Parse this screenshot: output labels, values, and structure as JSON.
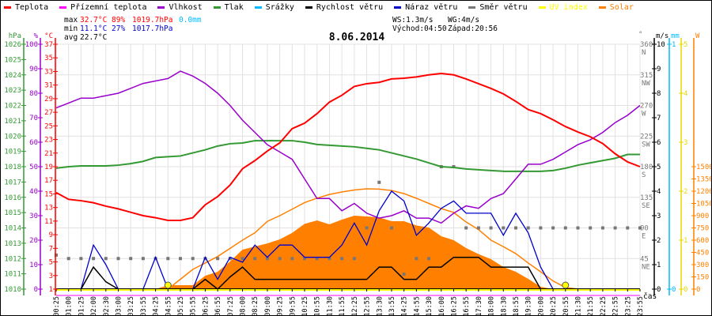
{
  "legend": [
    {
      "label": "Teplota",
      "color": "#ff0000"
    },
    {
      "label": "Přízemní teplota",
      "color": "#ff00ff"
    },
    {
      "label": "Vlhkost",
      "color": "#9900cc"
    },
    {
      "label": "Tlak",
      "color": "#339933"
    },
    {
      "label": "Srážky",
      "color": "#00bbff"
    },
    {
      "label": "Rychlost větru",
      "color": "#000000"
    },
    {
      "label": "Náraz větru",
      "color": "#0000cc"
    },
    {
      "label": "Směr větru",
      "color": "#777777"
    },
    {
      "label": "UV index",
      "color": "#ffff00"
    },
    {
      "label": "Solar",
      "color": "#ff8000"
    }
  ],
  "stats": {
    "max_label": "max",
    "max_temp": "32.7°C",
    "max_hum": "89%",
    "max_press": "1019.7hPa",
    "rain": "0.0mm",
    "min_label": "min",
    "min_temp": "11.1°C",
    "min_hum": "27%",
    "min_press": "1017.7hPa",
    "avg_label": "avg",
    "avg_temp": "22.7°C",
    "ws": "WS:1.3m/s",
    "wg": "WG:4m/s",
    "sunrise": "Východ:04:50",
    "sunset": "Západ:20:56"
  },
  "chart_data": {
    "type": "line",
    "title": "8.06.2014",
    "xlabel": "čas",
    "x": [
      "00:25",
      "01:00",
      "01:25",
      "02:00",
      "02:30",
      "03:00",
      "03:25",
      "03:55",
      "04:25",
      "04:55",
      "05:25",
      "05:55",
      "06:25",
      "06:55",
      "07:25",
      "08:00",
      "08:25",
      "09:00",
      "09:25",
      "09:55",
      "10:25",
      "10:55",
      "11:30",
      "11:55",
      "12:25",
      "12:55",
      "13:30",
      "13:55",
      "14:25",
      "14:55",
      "15:30",
      "16:00",
      "16:25",
      "16:55",
      "17:30",
      "18:00",
      "18:30",
      "18:55",
      "19:30",
      "20:00",
      "20:25",
      "20:55",
      "21:30",
      "21:55",
      "22:25",
      "22:55",
      "23:25",
      "23:55"
    ],
    "axes": {
      "pressure": {
        "unit": "hPa",
        "range": [
          1010,
          1026
        ],
        "ticks": [
          1026,
          1025,
          1024,
          1023,
          1022,
          1021,
          1020,
          1019,
          1018,
          1017,
          1016,
          1015,
          1014,
          1013,
          1012,
          1011,
          1010
        ]
      },
      "humidity": {
        "unit": "%",
        "range": [
          0,
          100
        ],
        "ticks": [
          100,
          90,
          80,
          70,
          60,
          50,
          40,
          30,
          20,
          10,
          0
        ]
      },
      "temperature": {
        "unit": "°C",
        "range": [
          1,
          37
        ],
        "ticks": [
          37,
          35,
          33,
          31,
          29,
          27,
          25,
          23,
          21,
          19,
          17,
          15,
          13,
          11,
          9,
          7,
          5,
          3,
          1
        ]
      },
      "direction": {
        "unit": "°",
        "range": [
          0,
          360
        ],
        "ticks": [
          {
            "v": 360,
            "l": "N"
          },
          {
            "v": 315,
            "l": "NW"
          },
          {
            "v": 270,
            "l": "W"
          },
          {
            "v": 225,
            "l": "SW"
          },
          {
            "v": 180,
            "l": "S"
          },
          {
            "v": 135,
            "l": "SE"
          },
          {
            "v": 90,
            "l": "E"
          },
          {
            "v": 45,
            "l": "NE"
          }
        ]
      },
      "wind": {
        "unit": "m/s",
        "range": [
          0,
          10
        ],
        "ticks": [
          10,
          9,
          8,
          7,
          6,
          5,
          4,
          3,
          2,
          1,
          0
        ]
      },
      "rain": {
        "unit": "mm",
        "range": [
          0,
          1
        ],
        "ticks": [
          1,
          0
        ]
      },
      "uv": {
        "unit": "",
        "range": [
          0,
          5
        ],
        "ticks": [
          5,
          4,
          3,
          2,
          1,
          0
        ]
      },
      "solar": {
        "unit": "W",
        "range": [
          0,
          3000
        ],
        "ticks": [
          1500,
          1350,
          1200,
          1050,
          900,
          750,
          600,
          450,
          300,
          150,
          0
        ]
      }
    },
    "series": {
      "temperature": {
        "name": "Teplota",
        "axis": "temperature",
        "color": "#ff0000",
        "values": [
          15.2,
          14.2,
          14.0,
          13.7,
          13.2,
          12.8,
          12.3,
          11.8,
          11.5,
          11.1,
          11.1,
          11.5,
          13.4,
          14.6,
          16.3,
          18.7,
          19.9,
          21.3,
          22.5,
          24.6,
          25.4,
          26.8,
          28.5,
          29.5,
          30.8,
          31.2,
          31.4,
          31.9,
          32.0,
          32.2,
          32.5,
          32.7,
          32.5,
          31.9,
          31.2,
          30.5,
          29.7,
          28.6,
          27.4,
          26.8,
          25.9,
          24.9,
          24.1,
          23.4,
          22.4,
          20.9,
          19.7,
          19.0
        ]
      },
      "humidity": {
        "name": "Vlhkost",
        "axis": "humidity",
        "color": "#9900cc",
        "values": [
          74,
          76,
          78,
          78,
          79,
          80,
          82,
          84,
          85,
          86,
          89,
          87,
          84,
          80,
          75,
          69,
          64,
          59,
          56,
          53,
          45,
          37,
          37,
          32,
          35,
          31,
          29,
          30,
          32,
          29,
          29,
          27,
          31,
          34,
          33,
          37,
          39,
          45,
          51,
          51,
          53,
          56,
          59,
          61,
          64,
          68,
          71,
          75
        ]
      },
      "pressure": {
        "name": "Tlak",
        "axis": "pressure",
        "color": "#339933",
        "values": [
          1017.9,
          1018.0,
          1018.05,
          1018.05,
          1018.05,
          1018.1,
          1018.2,
          1018.35,
          1018.6,
          1018.65,
          1018.7,
          1018.9,
          1019.1,
          1019.35,
          1019.5,
          1019.55,
          1019.7,
          1019.7,
          1019.7,
          1019.7,
          1019.6,
          1019.45,
          1019.4,
          1019.35,
          1019.3,
          1019.2,
          1019.1,
          1018.9,
          1018.7,
          1018.5,
          1018.25,
          1018.0,
          1017.95,
          1017.85,
          1017.8,
          1017.75,
          1017.7,
          1017.7,
          1017.7,
          1017.7,
          1017.75,
          1017.9,
          1018.1,
          1018.25,
          1018.4,
          1018.55,
          1018.8,
          1018.8
        ]
      },
      "rain": {
        "name": "Srážky",
        "axis": "rain",
        "color": "#00bbff",
        "values": [
          0,
          0,
          0,
          0,
          0,
          0,
          0,
          0,
          0,
          0,
          0,
          0,
          0,
          0,
          0,
          0,
          0,
          0,
          0,
          0,
          0,
          0,
          0,
          0,
          0,
          0,
          0,
          0,
          0,
          0,
          0,
          0,
          0,
          0,
          0,
          0,
          0,
          0,
          0,
          0,
          0,
          0,
          0,
          0,
          0,
          0,
          0,
          0
        ]
      },
      "wind_speed": {
        "name": "Rychlost větru",
        "axis": "wind",
        "color": "#000000",
        "values": [
          0,
          0,
          0,
          0.9,
          0.3,
          0,
          0,
          0,
          0,
          0,
          0,
          0,
          0.4,
          0,
          0.5,
          0.9,
          0.4,
          0.4,
          0.4,
          0.4,
          0.4,
          0.4,
          0.4,
          0.4,
          0.4,
          0.4,
          0.9,
          0.9,
          0.4,
          0.4,
          0.9,
          0.9,
          1.3,
          1.3,
          1.3,
          0.9,
          0.9,
          0.9,
          0.9,
          0,
          0,
          0,
          0,
          0,
          0,
          0,
          0,
          0
        ]
      },
      "wind_gust": {
        "name": "Náraz větru",
        "axis": "wind",
        "color": "#0000cc",
        "values": [
          0,
          0,
          0,
          1.8,
          1.0,
          0,
          0,
          0,
          1.3,
          0,
          0,
          0,
          1.3,
          0.4,
          1.3,
          1.1,
          1.8,
          1.3,
          1.8,
          1.8,
          1.3,
          1.3,
          1.3,
          1.8,
          2.7,
          1.8,
          3.2,
          4.0,
          3.6,
          2.2,
          2.7,
          3.3,
          3.6,
          3.1,
          3.1,
          3.1,
          2.2,
          3.1,
          2.3,
          0.9,
          0,
          0,
          0,
          0,
          0,
          0,
          0,
          0
        ]
      },
      "wind_direction": {
        "name": "Směr větru",
        "axis": "direction",
        "color": "#777777",
        "values": [
          50,
          45,
          45,
          45,
          45,
          45,
          45,
          45,
          45,
          45,
          45,
          45,
          45,
          45,
          45,
          45,
          45,
          45,
          45,
          45,
          45,
          45,
          45,
          45,
          45,
          90,
          157,
          90,
          22,
          45,
          45,
          180,
          180,
          90,
          90,
          90,
          90,
          90,
          90,
          90,
          90,
          90,
          90,
          90,
          90,
          90,
          90,
          90
        ]
      },
      "uv": {
        "name": "UV index",
        "axis": "uv",
        "color": "#ffff00",
        "values": [
          0,
          0,
          0,
          0,
          0,
          0,
          0,
          0,
          0,
          0,
          0,
          0,
          0,
          0,
          0,
          0,
          0,
          0,
          0,
          0,
          0,
          0,
          0,
          0,
          0,
          0,
          0,
          0,
          0,
          0,
          0,
          0,
          0,
          0,
          0,
          0,
          0,
          0,
          0,
          0,
          0,
          0,
          0,
          0,
          0,
          0,
          0,
          0
        ]
      },
      "solar": {
        "name": "Solar",
        "axis": "solar",
        "color": "#ff8000",
        "values": [
          0,
          0,
          0,
          0,
          0,
          0,
          0,
          0,
          0,
          48,
          48,
          48,
          164,
          213,
          339,
          484,
          522,
          560,
          610,
          690,
          800,
          842,
          794,
          852,
          900,
          890,
          880,
          832,
          832,
          780,
          755,
          648,
          600,
          503,
          430,
          368,
          271,
          213,
          126,
          29,
          0,
          0,
          0,
          0,
          0,
          0,
          0,
          0
        ]
      },
      "solar_max": {
        "name": "Solar max",
        "axis": "solar",
        "color": "#ff8000",
        "values": [
          0,
          0,
          0,
          0,
          0,
          0,
          0,
          0,
          0,
          0,
          121,
          242,
          320,
          400,
          500,
          600,
          690,
          830,
          900,
          980,
          1060,
          1115,
          1160,
          1190,
          1215,
          1229,
          1225,
          1209,
          1170,
          1113,
          1050,
          987,
          939,
          822,
          730,
          600,
          520,
          435,
          320,
          213,
          100,
          20,
          0,
          0,
          0,
          0,
          0,
          0
        ]
      }
    },
    "sun_markers": [
      "04:55",
      "20:55"
    ]
  }
}
